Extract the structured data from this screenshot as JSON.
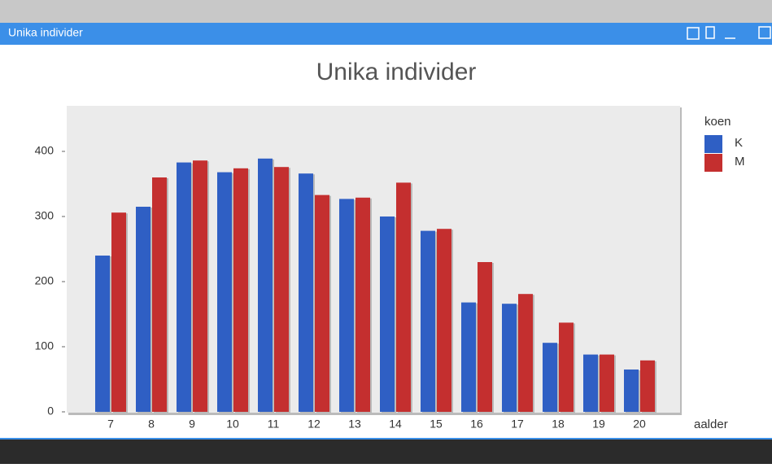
{
  "window": {
    "title": "Unika individer"
  },
  "chart_data": {
    "type": "bar",
    "title": "Unika individer",
    "x_label": "aalder",
    "legend_title": "koen",
    "categories": [
      "7",
      "8",
      "9",
      "10",
      "11",
      "12",
      "13",
      "14",
      "15",
      "16",
      "17",
      "18",
      "19",
      "20"
    ],
    "series": [
      {
        "name": "K",
        "color": "#2f5fc4",
        "values": [
          240,
          315,
          383,
          368,
          389,
          366,
          327,
          300,
          278,
          168,
          166,
          106,
          88,
          65
        ]
      },
      {
        "name": "M",
        "color": "#c42f2f",
        "values": [
          306,
          360,
          386,
          374,
          376,
          333,
          329,
          352,
          281,
          230,
          181,
          137,
          88,
          79
        ]
      }
    ],
    "ylim": [
      0,
      470
    ],
    "yticks": [
      0,
      100,
      200,
      300,
      400
    ],
    "legend": "right"
  }
}
